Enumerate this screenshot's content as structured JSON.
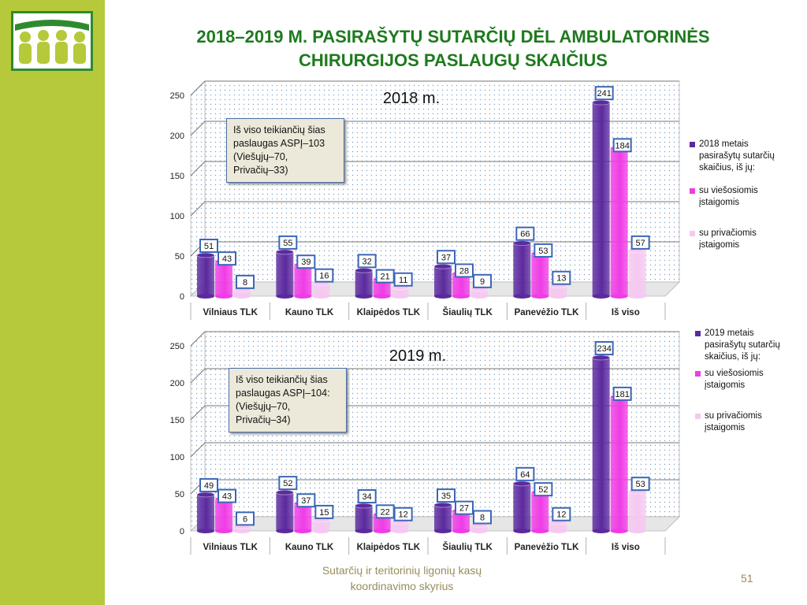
{
  "title": "2018–2019 M. PASIRAŠYTŲ SUTARČIŲ DĖL AMBULATORINĖS CHIRURGIJOS PASLAUGŲ SKAIČIUS",
  "footer": "Sutarčių ir teritorinių ligonių kasų koordinavimo skyrius",
  "page_number": "51",
  "colors": {
    "sidebar": "#b6c93a",
    "title": "#1e7a1e",
    "total": "#5b2a9e",
    "public": "#f03ce6",
    "private": "#f6c8f1"
  },
  "chart_data": [
    {
      "type": "bar",
      "title": "2018 m.",
      "categories": [
        "Vilniaus TLK",
        "Kauno TLK",
        "Klaipėdos TLK",
        "Šiaulių TLK",
        "Panevėžio TLK",
        "Iš viso"
      ],
      "ylim": [
        0,
        250
      ],
      "yticks": [
        "0",
        "50",
        "100",
        "150",
        "200",
        "250"
      ],
      "series": [
        {
          "name": "2018 metais pasirašytų sutarčių skaičius, iš jų:",
          "values": [
            51,
            55,
            32,
            37,
            66,
            241
          ]
        },
        {
          "name": "su viešosiomis įstaigomis",
          "values": [
            43,
            39,
            21,
            28,
            53,
            184
          ]
        },
        {
          "name": "su privačiomis įstaigomis",
          "values": [
            8,
            16,
            11,
            9,
            13,
            57
          ]
        }
      ],
      "annotation": [
        "Iš viso teikiančių šias",
        "paslaugas ASPĮ–103",
        "(Viešųjų–70,",
        "Privačių–33)"
      ],
      "legend": "right"
    },
    {
      "type": "bar",
      "title": "2019 m.",
      "categories": [
        "Vilniaus TLK",
        "Kauno TLK",
        "Klaipėdos TLK",
        "Šiaulių TLK",
        "Panevėžio TLK",
        "Iš viso"
      ],
      "ylim": [
        0,
        250
      ],
      "yticks": [
        "0",
        "50",
        "100",
        "150",
        "200",
        "250"
      ],
      "series": [
        {
          "name": "2019 metais pasirašytų sutarčių skaičius, iš jų:",
          "values": [
            49,
            52,
            34,
            35,
            64,
            234
          ]
        },
        {
          "name": "su viešosiomis įstaigomis",
          "values": [
            43,
            37,
            22,
            27,
            52,
            181
          ]
        },
        {
          "name": "su privačiomis įstaigomis",
          "values": [
            6,
            15,
            12,
            8,
            12,
            53
          ]
        }
      ],
      "annotation": [
        "Iš viso teikiančių šias",
        "paslaugas ASPĮ–104:",
        "(Viešųjų–70,",
        "Privačių–34)"
      ],
      "legend": "right"
    }
  ]
}
